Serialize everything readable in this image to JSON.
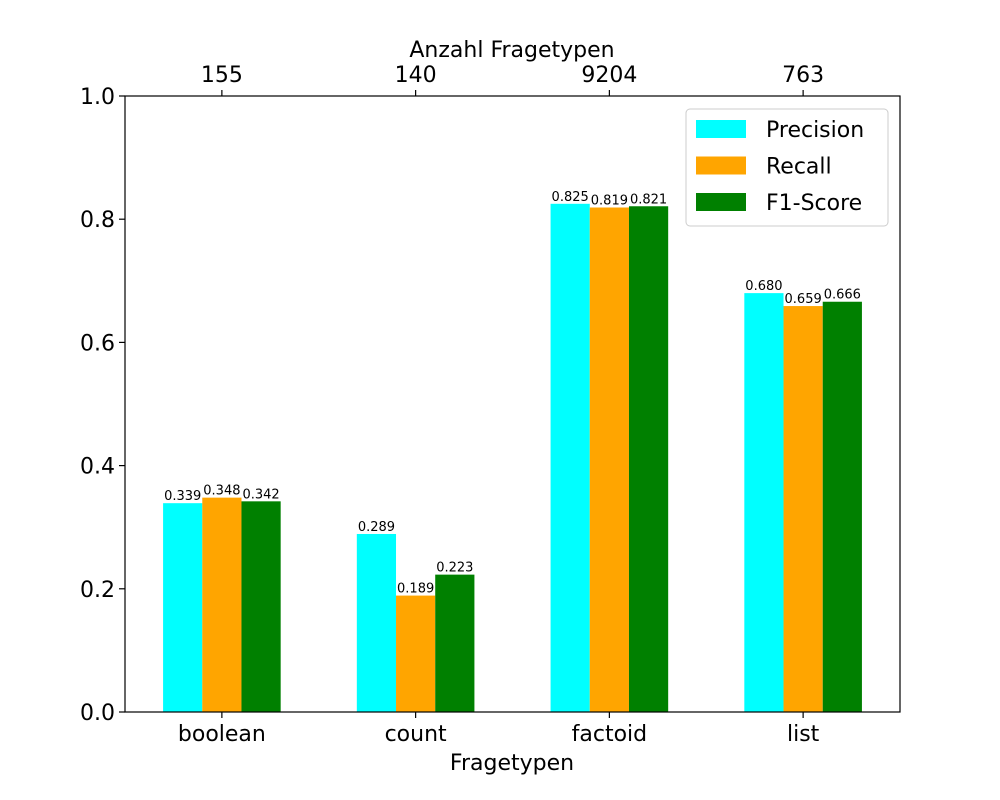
{
  "chart_data": {
    "type": "bar",
    "xlabel": "Fragetypen",
    "top_xlabel": "Anzahl Fragetypen",
    "ylabel": "",
    "ylim": [
      0,
      1.0
    ],
    "yticks": [
      "0.0",
      "0.2",
      "0.4",
      "0.6",
      "0.8",
      "1.0"
    ],
    "categories": [
      "boolean",
      "count",
      "factoid",
      "list"
    ],
    "top_tick_labels": [
      "155",
      "140",
      "9204",
      "763"
    ],
    "series": [
      {
        "name": "Precision",
        "color": "#00ffff",
        "values": [
          0.339,
          0.289,
          0.825,
          0.68
        ],
        "labels": [
          "0.339",
          "0.289",
          "0.825",
          "0.680"
        ]
      },
      {
        "name": "Recall",
        "color": "#ffa500",
        "values": [
          0.348,
          0.189,
          0.819,
          0.659
        ],
        "labels": [
          "0.348",
          "0.189",
          "0.819",
          "0.659"
        ]
      },
      {
        "name": "F1-Score",
        "color": "#008000",
        "values": [
          0.342,
          0.223,
          0.821,
          0.666
        ],
        "labels": [
          "0.342",
          "0.223",
          "0.821",
          "0.666"
        ]
      }
    ],
    "legend_position": "top-right",
    "grid": false
  }
}
